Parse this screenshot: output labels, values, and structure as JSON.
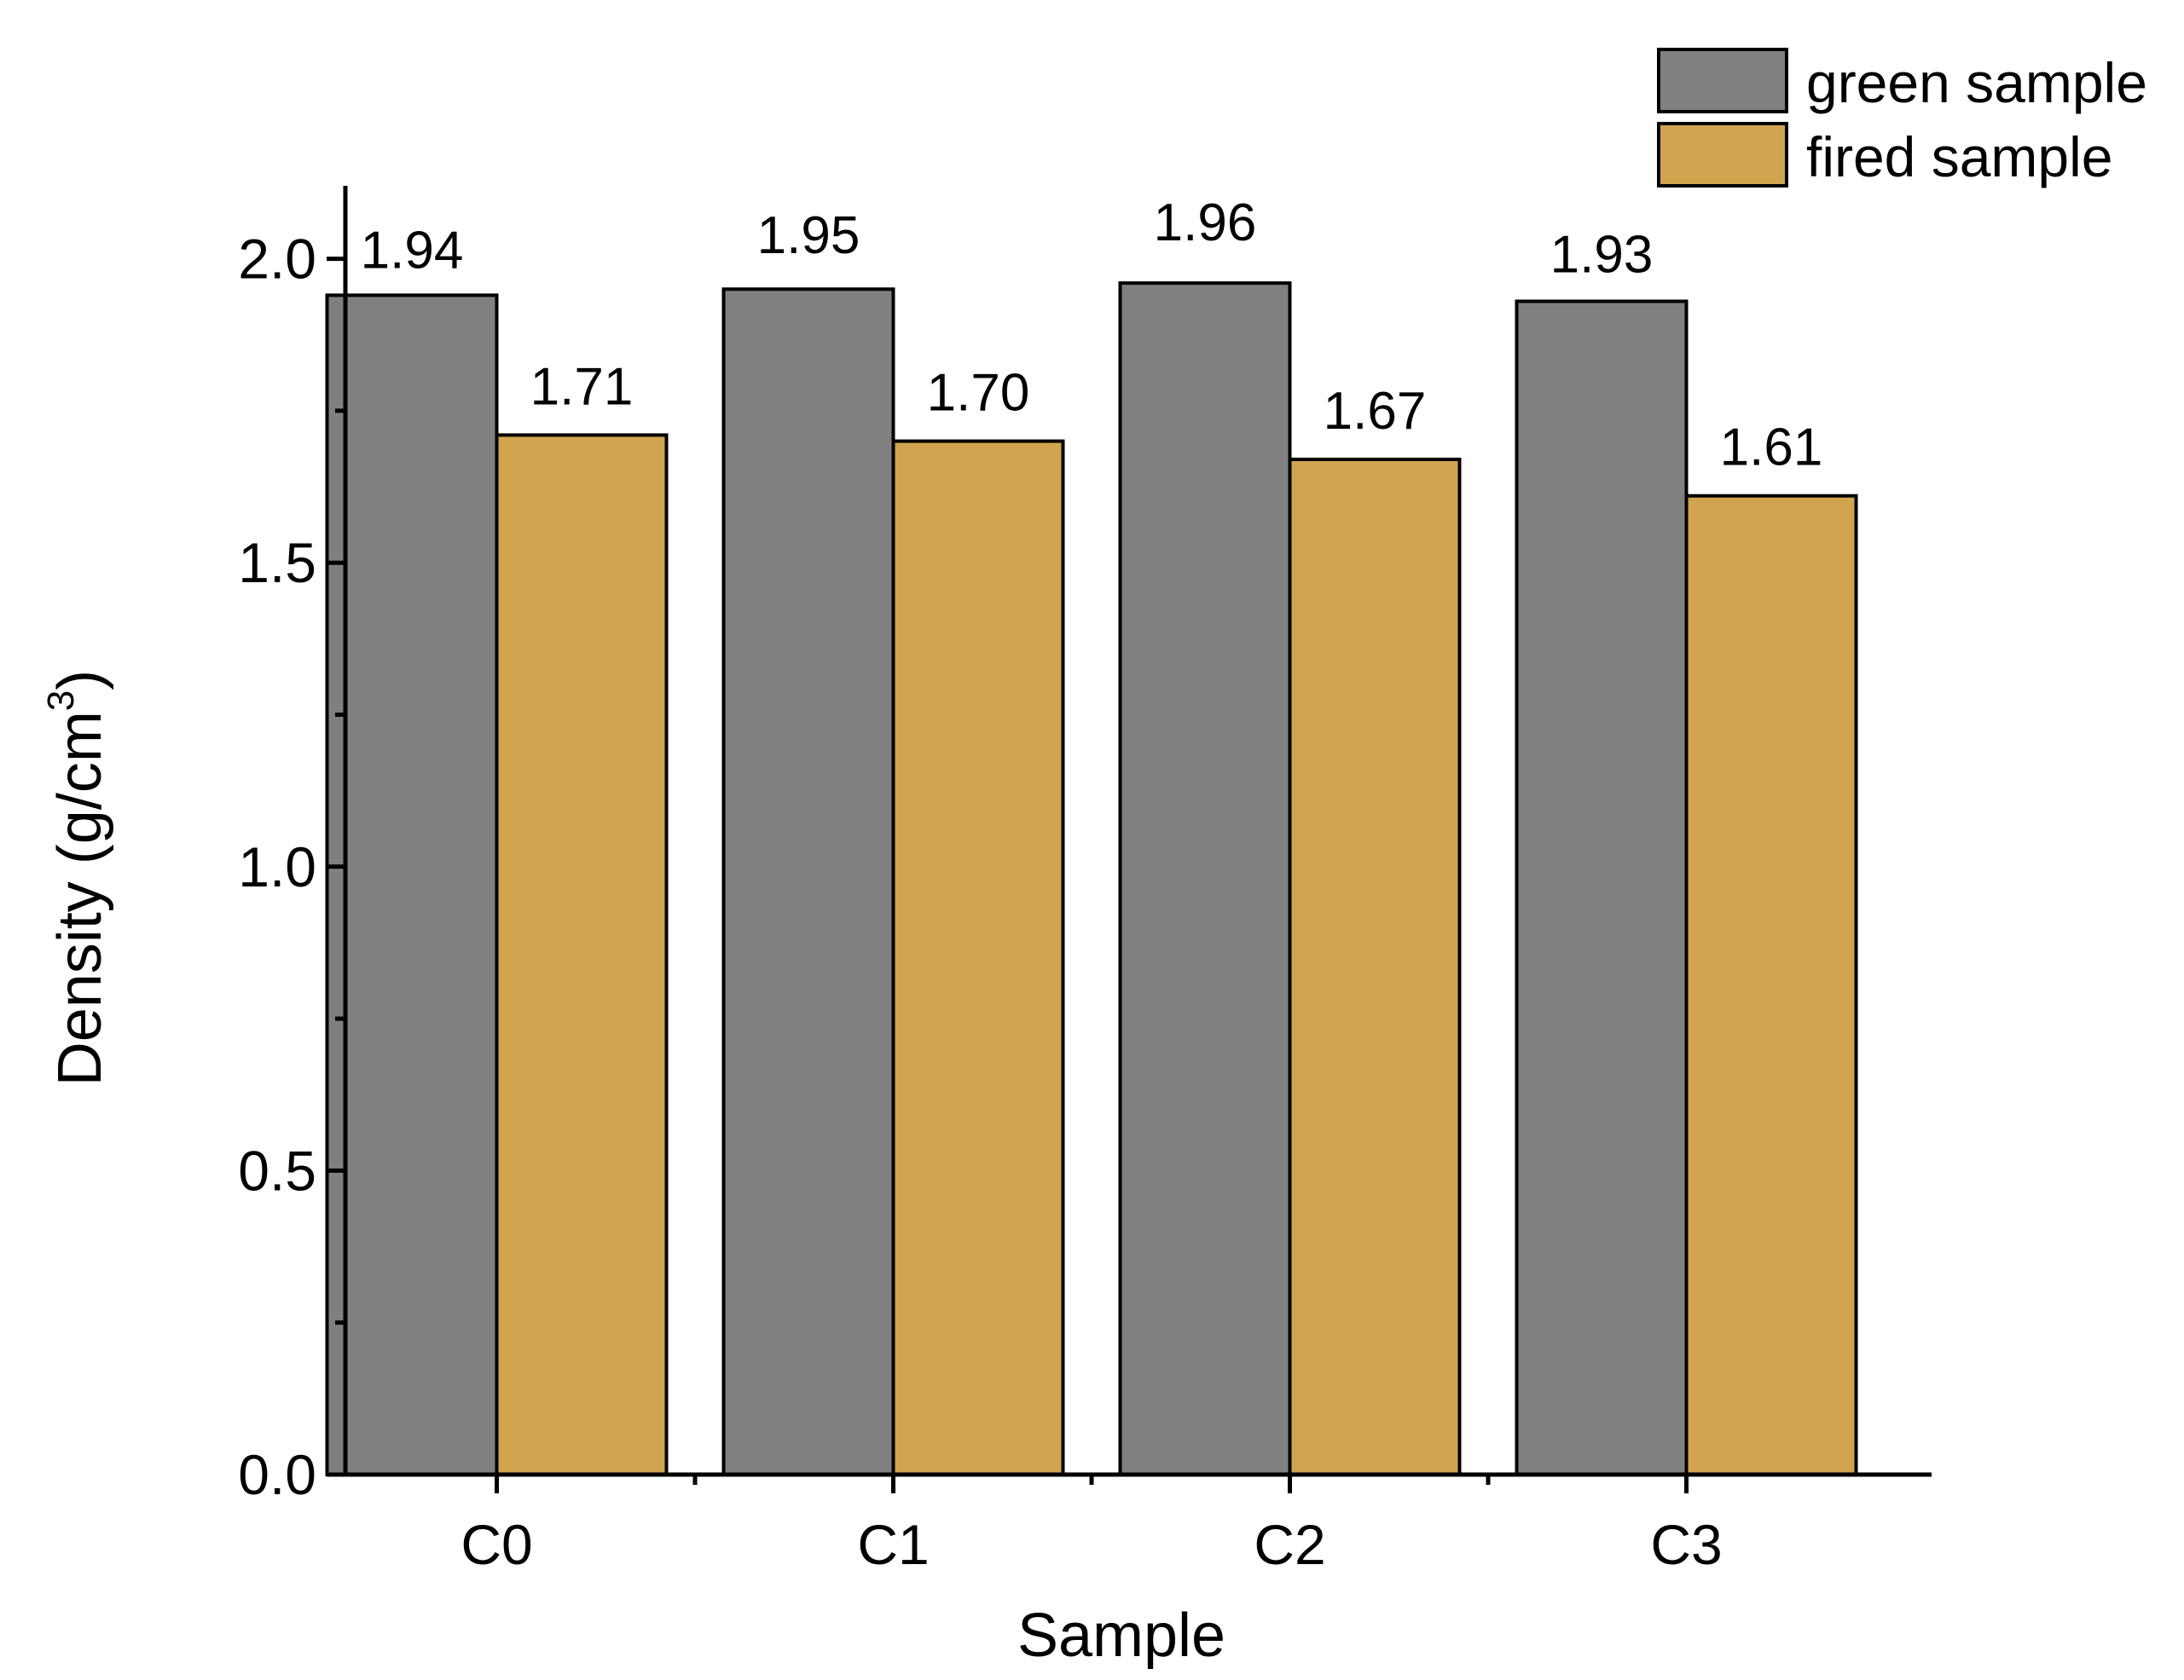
{
  "chart_data": {
    "type": "bar",
    "title": "",
    "xlabel": "Sample",
    "ylabel": "Density (g/cm",
    "ylabel_superscript": "3",
    "ylabel_close": ")",
    "categories": [
      "C0",
      "C1",
      "C2",
      "C3"
    ],
    "series": [
      {
        "name": "green sample",
        "color": "#808080",
        "values": [
          1.94,
          1.95,
          1.96,
          1.93
        ],
        "labels": [
          "1.94",
          "1.95",
          "1.96",
          "1.93"
        ]
      },
      {
        "name": "fired sample",
        "color": "#D1A54F",
        "values": [
          1.71,
          1.7,
          1.67,
          1.61
        ],
        "labels": [
          "1.71",
          "1.70",
          "1.67",
          "1.61"
        ]
      }
    ],
    "ylim": [
      0,
      2.12
    ],
    "yticks": [
      0.0,
      0.5,
      1.0,
      1.5,
      2.0
    ],
    "ytick_labels": [
      "0.0",
      "0.5",
      "1.0",
      "1.5",
      "2.0"
    ],
    "legend_position": "top-right",
    "grid": false
  }
}
